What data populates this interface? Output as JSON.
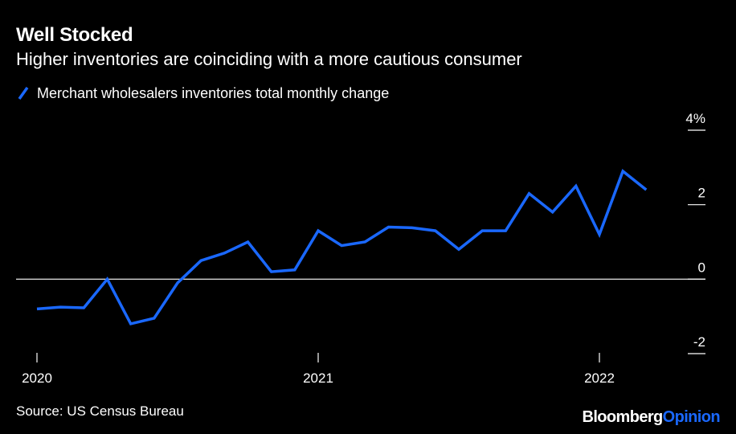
{
  "header": {
    "title": "Well Stocked",
    "subtitle": "Higher inventories are coinciding with a more cautious consumer"
  },
  "legend": {
    "label": "Merchant wholesalers inventories total monthly change",
    "icon": "line-swatch-icon"
  },
  "footer": {
    "source": "Source: US Census Bureau",
    "brand_primary": "Bloomberg",
    "brand_secondary": "Opinion"
  },
  "colors": {
    "background": "#000000",
    "text": "#ffffff",
    "series": "#1a68ff",
    "axis": "#ffffff"
  },
  "chart_data": {
    "type": "line",
    "title": "Well Stocked",
    "subtitle": "Higher inventories are coinciding with a more cautious consumer",
    "xlabel": "",
    "ylabel": "",
    "y_tick_labels": [
      "4%",
      "2",
      "0",
      "-2"
    ],
    "y_ticks": [
      4,
      2,
      0,
      -2
    ],
    "ylim": [
      -2,
      4
    ],
    "y_axis_side": "right",
    "x_tick_labels": [
      "2020",
      "2021",
      "2022"
    ],
    "x_ticks": [
      "2020-01",
      "2021-01",
      "2022-01"
    ],
    "grid": false,
    "zero_line": true,
    "legend_position": "top-left",
    "series": [
      {
        "name": "Merchant wholesalers inventories total monthly change",
        "x": [
          "2020-01",
          "2020-02",
          "2020-03",
          "2020-04",
          "2020-05",
          "2020-06",
          "2020-07",
          "2020-08",
          "2020-09",
          "2020-10",
          "2020-11",
          "2020-12",
          "2021-01",
          "2021-02",
          "2021-03",
          "2021-04",
          "2021-05",
          "2021-06",
          "2021-07",
          "2021-08",
          "2021-09",
          "2021-10",
          "2021-11",
          "2021-12",
          "2022-01",
          "2022-02",
          "2022-03"
        ],
        "values": [
          -0.8,
          -0.75,
          -0.77,
          0.0,
          -1.2,
          -1.05,
          -0.1,
          0.5,
          0.7,
          1.0,
          0.2,
          0.25,
          1.3,
          0.9,
          1.0,
          1.4,
          1.38,
          1.3,
          0.8,
          1.3,
          1.3,
          2.3,
          1.8,
          2.5,
          1.2,
          2.9,
          2.4
        ]
      }
    ]
  }
}
